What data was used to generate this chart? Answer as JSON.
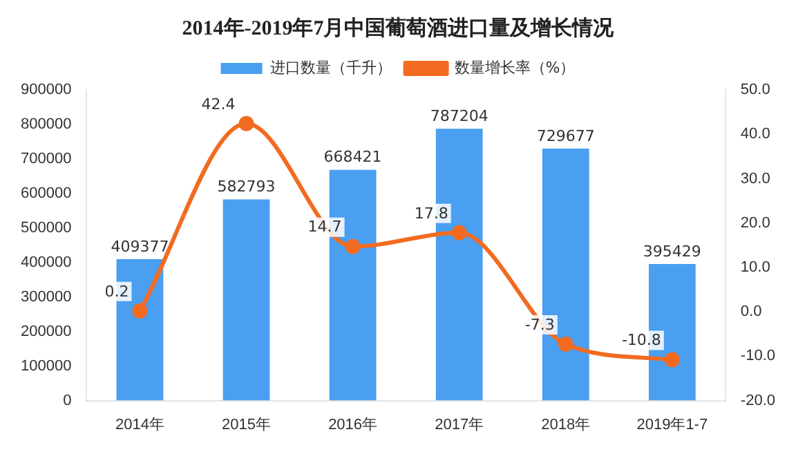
{
  "chart_data": {
    "type": "bar",
    "title": "2014年-2019年7月中国葡萄酒进口量及增长情况",
    "categories": [
      "2014年",
      "2015年",
      "2016年",
      "2017年",
      "2018年",
      "2019年1-7"
    ],
    "series": [
      {
        "name": "进口数量（千升）",
        "color": "#4a9ff0",
        "values": [
          409377,
          582793,
          668421,
          787204,
          729677,
          395429
        ]
      },
      {
        "name": "数量增长率（%）",
        "type": "line",
        "axis": "y2",
        "color": "#f26b21",
        "values": [
          0.2,
          42.4,
          14.7,
          17.8,
          -7.3,
          -10.8
        ]
      }
    ],
    "ylim": [
      0,
      900000
    ],
    "yticks": [
      0,
      100000,
      200000,
      300000,
      400000,
      500000,
      600000,
      700000,
      800000,
      900000
    ],
    "y2lim": [
      -20,
      50
    ],
    "y2ticks": [
      {
        "value": -20,
        "label": "-20.0"
      },
      {
        "value": -10,
        "label": "-10.0"
      },
      {
        "value": 0,
        "label": "0.0"
      },
      {
        "value": 10,
        "label": "10.0"
      },
      {
        "value": 20,
        "label": "20.0"
      },
      {
        "value": 30,
        "label": "30.0"
      },
      {
        "value": 40,
        "label": "40.0"
      },
      {
        "value": 50,
        "label": "50.0"
      }
    ],
    "data_labels": true,
    "legend": "top",
    "grid": false,
    "marker": "circle",
    "line_style": "solid"
  }
}
